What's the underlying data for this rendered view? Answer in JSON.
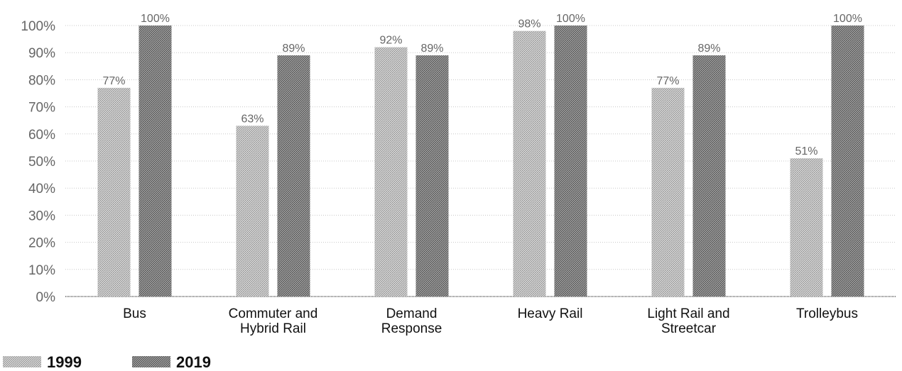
{
  "chart_data": {
    "type": "bar",
    "categories": [
      [
        "Bus"
      ],
      [
        "Commuter and",
        "Hybrid Rail"
      ],
      [
        "Demand",
        "Response"
      ],
      [
        "Heavy Rail"
      ],
      [
        "Light Rail and",
        "Streetcar"
      ],
      [
        "Trolleybus"
      ]
    ],
    "series": [
      {
        "name": "1999",
        "values": [
          77,
          63,
          92,
          98,
          77,
          51
        ],
        "labels": [
          "77%",
          "63%",
          "92%",
          "98%",
          "77%",
          "51%"
        ],
        "color": "#a8a8a8"
      },
      {
        "name": "2019",
        "values": [
          100,
          89,
          89,
          100,
          89,
          100
        ],
        "labels": [
          "100%",
          "89%",
          "89%",
          "100%",
          "89%",
          "100%"
        ],
        "color": "#6e6e6e"
      }
    ],
    "yticks": [
      "0%",
      "10%",
      "20%",
      "30%",
      "40%",
      "50%",
      "60%",
      "70%",
      "80%",
      "90%",
      "100%"
    ],
    "ylim": [
      0,
      100
    ],
    "grid": true,
    "legend": "bottom-left",
    "title": "",
    "xlabel": "",
    "ylabel": ""
  }
}
